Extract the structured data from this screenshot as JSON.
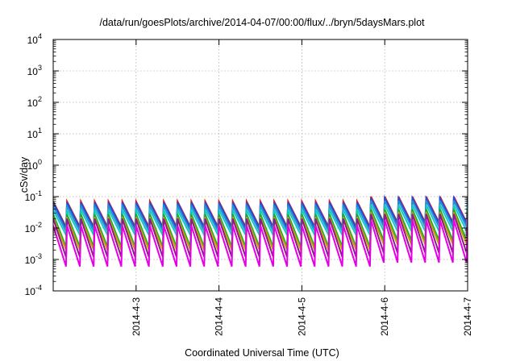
{
  "chart_data": {
    "type": "line",
    "title": "/data/run/goesPlots/archive/2014-04-07/00:00/flux/../bryn/5daysMars.plot",
    "xlabel": "Coordinated Universal Time (UTC)",
    "ylabel": "cSv/day",
    "y_scale": "log",
    "ylim": [
      0.0001,
      10000
    ],
    "y_ticks": [
      {
        "base": "10",
        "exp": "-4"
      },
      {
        "base": "10",
        "exp": "-3"
      },
      {
        "base": "10",
        "exp": "-2"
      },
      {
        "base": "10",
        "exp": "-1"
      },
      {
        "base": "10",
        "exp": "0"
      },
      {
        "base": "10",
        "exp": "1"
      },
      {
        "base": "10",
        "exp": "2"
      },
      {
        "base": "10",
        "exp": "3"
      },
      {
        "base": "10",
        "exp": "4"
      }
    ],
    "xlim": [
      "2014-04-02T00:00",
      "2014-04-07T00:00"
    ],
    "x_ticks": [
      "2014-4-3",
      "2014-4-4",
      "2014-4-5",
      "2014-4-6",
      "2014-4-7"
    ],
    "grid": true,
    "legend": "none",
    "pattern": {
      "description": "sawtooth: sharp rise followed by decay, repeating about 6 times per day",
      "cycle_hours": 4,
      "regime_change_at": "2014-04-05T19:00"
    },
    "series": [
      {
        "color": "#e0161b",
        "peak_values": [
          0.07,
          0.1
        ],
        "trough_values": [
          0.011,
          0.015
        ]
      },
      {
        "color": "#1f4fd8",
        "peak_values": [
          0.065,
          0.09
        ],
        "trough_values": [
          0.01,
          0.014
        ]
      },
      {
        "color": "#2a8bd6",
        "peak_values": [
          0.05,
          0.075
        ],
        "trough_values": [
          0.008,
          0.011
        ]
      },
      {
        "color": "#15c8c8",
        "peak_values": [
          0.038,
          0.055
        ],
        "trough_values": [
          0.006,
          0.008
        ]
      },
      {
        "color": "#16b030",
        "peak_values": [
          0.028,
          0.04
        ],
        "trough_values": [
          0.0025,
          0.004
        ]
      },
      {
        "color": "#c8a000",
        "peak_values": [
          0.022,
          0.032
        ],
        "trough_values": [
          0.002,
          0.003
        ]
      },
      {
        "color": "#8e1a8e",
        "peak_values": [
          0.02,
          0.028
        ],
        "trough_values": [
          0.0012,
          0.0016
        ]
      },
      {
        "color": "#e600e6",
        "peak_values": [
          0.012,
          0.018
        ],
        "trough_values": [
          0.0006,
          0.0008
        ]
      }
    ]
  }
}
